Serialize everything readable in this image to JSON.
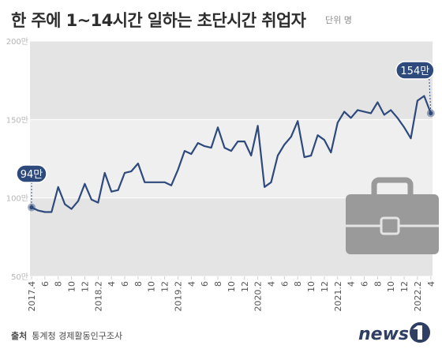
{
  "header": {
    "title": "한 주에 1~14시간 일하는 초단시간 취업자",
    "unit": "단위 명"
  },
  "footer": {
    "source_label": "출처",
    "source_text": "통계청 경제활동인구조사"
  },
  "logo": {
    "text": "news1",
    "colors": {
      "text": "#2f3e63",
      "accent": "#5b6478"
    }
  },
  "colors": {
    "line": "#2e4a7d",
    "plot_bg": "#efefef",
    "band": "#e4e4e4",
    "callout_bg": "#2e4a7d",
    "briefcase": "#9a9a9a"
  },
  "icons": {
    "decoration": "briefcase-icon"
  },
  "chart_data": {
    "type": "line",
    "ylim": [
      50,
      200
    ],
    "yticks": [
      50,
      100,
      150,
      200
    ],
    "ytick_labels": [
      "50만",
      "100만",
      "150만",
      "200만"
    ],
    "grid": true,
    "x_tick_labels": [
      "2017.4",
      "6",
      "8",
      "10",
      "12",
      "2018.2",
      "4",
      "6",
      "8",
      "10",
      "12",
      "2019.2",
      "4",
      "6",
      "8",
      "10",
      "12",
      "2020.2",
      "4",
      "6",
      "8",
      "10",
      "12",
      "2021.2",
      "4",
      "6",
      "8",
      "10",
      "12",
      "2022.2",
      "4"
    ],
    "x": [
      "2017.4",
      "2017.5",
      "2017.6",
      "2017.7",
      "2017.8",
      "2017.9",
      "2017.10",
      "2017.11",
      "2017.12",
      "2018.1",
      "2018.2",
      "2018.3",
      "2018.4",
      "2018.5",
      "2018.6",
      "2018.7",
      "2018.8",
      "2018.9",
      "2018.10",
      "2018.11",
      "2018.12",
      "2019.1",
      "2019.2",
      "2019.3",
      "2019.4",
      "2019.5",
      "2019.6",
      "2019.7",
      "2019.8",
      "2019.9",
      "2019.10",
      "2019.11",
      "2019.12",
      "2020.1",
      "2020.2",
      "2020.3",
      "2020.4",
      "2020.5",
      "2020.6",
      "2020.7",
      "2020.8",
      "2020.9",
      "2020.10",
      "2020.11",
      "2020.12",
      "2021.1",
      "2021.2",
      "2021.3",
      "2021.4",
      "2021.5",
      "2021.6",
      "2021.7",
      "2021.8",
      "2021.9",
      "2021.10",
      "2021.11",
      "2021.12",
      "2022.1",
      "2022.2",
      "2022.3",
      "2022.4"
    ],
    "series": [
      {
        "values": [
          94,
          92,
          91,
          91,
          107,
          96,
          93,
          98,
          109,
          99,
          97,
          116,
          104,
          105,
          116,
          117,
          122,
          110,
          110,
          110,
          110,
          108,
          118,
          130,
          128,
          135,
          133,
          132,
          145,
          132,
          130,
          136,
          136,
          127,
          146,
          107,
          110,
          127,
          134,
          139,
          149,
          126,
          127,
          140,
          137,
          129,
          148,
          155,
          151,
          156,
          155,
          154,
          161,
          153,
          156,
          151,
          145,
          138,
          162,
          165,
          154
        ]
      }
    ],
    "annotations": [
      {
        "x": "2017.4",
        "value": 94,
        "label": "94만"
      },
      {
        "x": "2022.4",
        "value": 154,
        "label": "154만"
      }
    ]
  }
}
